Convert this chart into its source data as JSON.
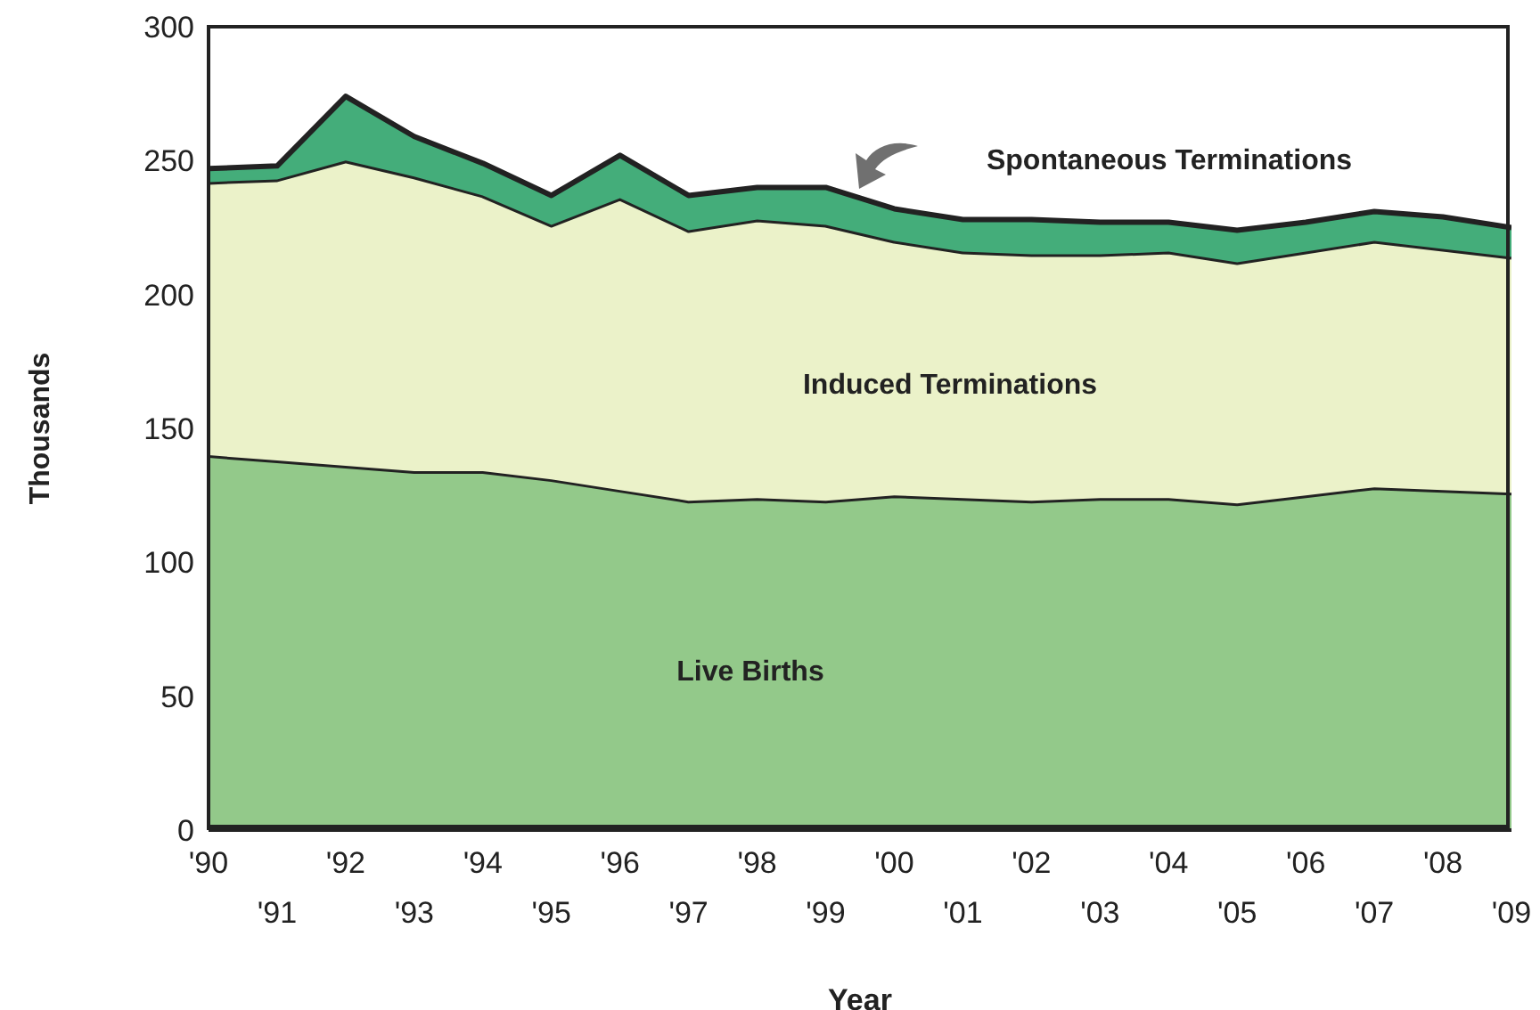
{
  "chart_data": {
    "type": "area",
    "stacked": true,
    "xlabel": "Year",
    "ylabel": "Thousands",
    "categories": [
      "'90",
      "'91",
      "'92",
      "'93",
      "'94",
      "'95",
      "'96",
      "'97",
      "'98",
      "'99",
      "'00",
      "'01",
      "'02",
      "'03",
      "'04",
      "'05",
      "'06",
      "'07",
      "'08",
      "'09"
    ],
    "ylim": [
      0,
      300
    ],
    "yticks": [
      0,
      50,
      100,
      150,
      200,
      250,
      300
    ],
    "series": [
      {
        "name": "Live Births",
        "color": "#93c98a",
        "values": [
          140,
          138,
          136,
          134,
          134,
          131,
          127,
          123,
          124,
          123,
          125,
          124,
          123,
          124,
          124,
          122,
          125,
          128,
          127,
          126
        ]
      },
      {
        "name": "Induced Terminations",
        "color": "#ebf2c9",
        "values": [
          102,
          105,
          114,
          110,
          103,
          95,
          109,
          101,
          104,
          103,
          95,
          92,
          92,
          91,
          92,
          90,
          91,
          92,
          90,
          88
        ]
      },
      {
        "name": "Spontaneous Terminations",
        "color": "#44ad7a",
        "values": [
          5,
          5,
          24,
          15,
          12,
          11,
          16,
          13,
          12,
          14,
          12,
          12,
          13,
          12,
          11,
          12,
          11,
          11,
          12,
          11
        ]
      }
    ]
  }
}
